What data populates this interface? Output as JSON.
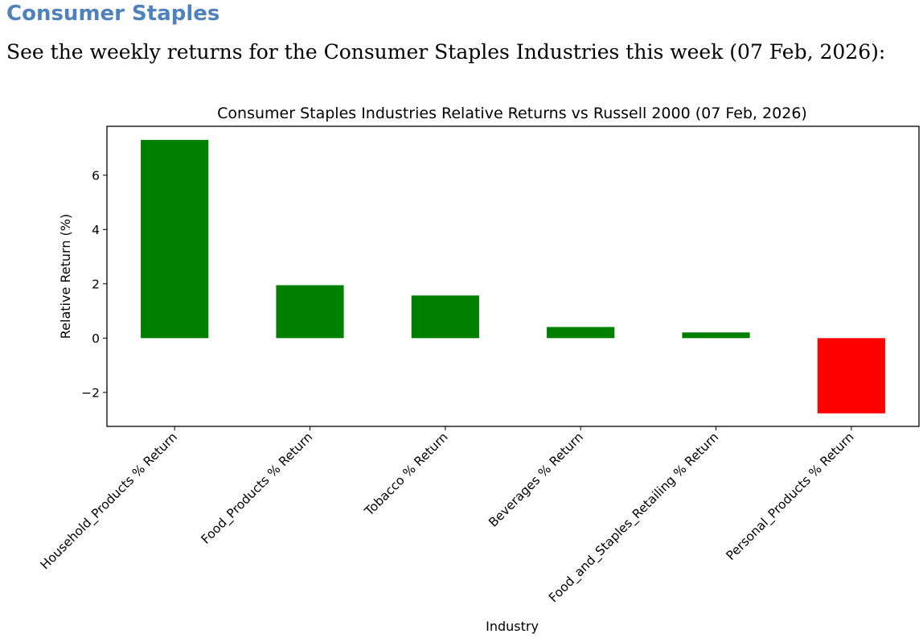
{
  "page": {
    "heading": "Consumer Staples",
    "intro": "See the weekly returns for the Consumer Staples Industries this week (07 Feb, 2026):"
  },
  "chart_data": {
    "type": "bar",
    "title": "Consumer Staples Industries Relative Returns vs Russell 2000 (07 Feb, 2026)",
    "xlabel": "Industry",
    "ylabel": "Relative Return (%)",
    "categories": [
      "Household_Products % Return",
      "Food_Products % Return",
      "Tobacco % Return",
      "Beverages % Return",
      "Food_and_Staples_Retailing % Return",
      "Personal_Products % Return"
    ],
    "values": [
      7.3,
      1.95,
      1.57,
      0.41,
      0.21,
      -2.77
    ],
    "colors": [
      "#008000",
      "#008000",
      "#008000",
      "#008000",
      "#008000",
      "#ff0000"
    ],
    "ylim": [
      -3.25,
      7.8
    ],
    "yticks": [
      -2,
      0,
      2,
      4,
      6
    ],
    "ytick_labels": [
      "−2",
      "0",
      "2",
      "4",
      "6"
    ],
    "grid": false,
    "legend": false
  }
}
